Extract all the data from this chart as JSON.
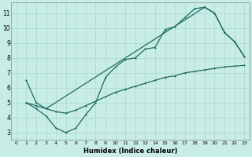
{
  "bg_color": "#c8ece6",
  "grid_color": "#a8d8d0",
  "line_color": "#1e6b5e",
  "xlabel": "Humidex (Indice chaleur)",
  "xlim": [
    -0.5,
    23.5
  ],
  "ylim": [
    2.5,
    11.7
  ],
  "xticks": [
    0,
    1,
    2,
    3,
    4,
    5,
    6,
    7,
    8,
    9,
    10,
    11,
    12,
    13,
    14,
    15,
    16,
    17,
    18,
    19,
    20,
    21,
    22,
    23
  ],
  "yticks": [
    3,
    4,
    5,
    6,
    7,
    8,
    9,
    10,
    11
  ],
  "line1_x": [
    1,
    2,
    3,
    4,
    5,
    6,
    7,
    8,
    9,
    10,
    11,
    12,
    13,
    14,
    15,
    16,
    17,
    18,
    19,
    20,
    21,
    22,
    23
  ],
  "line1_y": [
    5.0,
    4.6,
    4.1,
    3.3,
    3.0,
    3.3,
    4.2,
    5.0,
    6.7,
    7.4,
    7.9,
    8.0,
    8.6,
    8.7,
    9.9,
    10.1,
    10.7,
    11.3,
    11.4,
    11.0,
    9.7,
    9.1,
    8.1
  ],
  "line2_x": [
    1,
    2,
    3,
    4,
    5,
    6,
    7,
    8,
    9,
    10,
    11,
    12,
    13,
    14,
    15,
    16,
    17,
    18,
    19,
    20,
    21,
    22,
    23
  ],
  "line2_y": [
    5.0,
    4.8,
    4.6,
    4.4,
    4.3,
    4.5,
    4.8,
    5.1,
    5.4,
    5.7,
    5.9,
    6.1,
    6.3,
    6.5,
    6.7,
    6.8,
    7.0,
    7.1,
    7.2,
    7.3,
    7.4,
    7.45,
    7.5
  ],
  "line3_x": [
    1,
    2,
    3,
    19,
    20,
    21,
    22,
    23
  ],
  "line3_y": [
    6.5,
    5.0,
    4.6,
    11.4,
    11.0,
    9.7,
    9.1,
    8.1
  ]
}
